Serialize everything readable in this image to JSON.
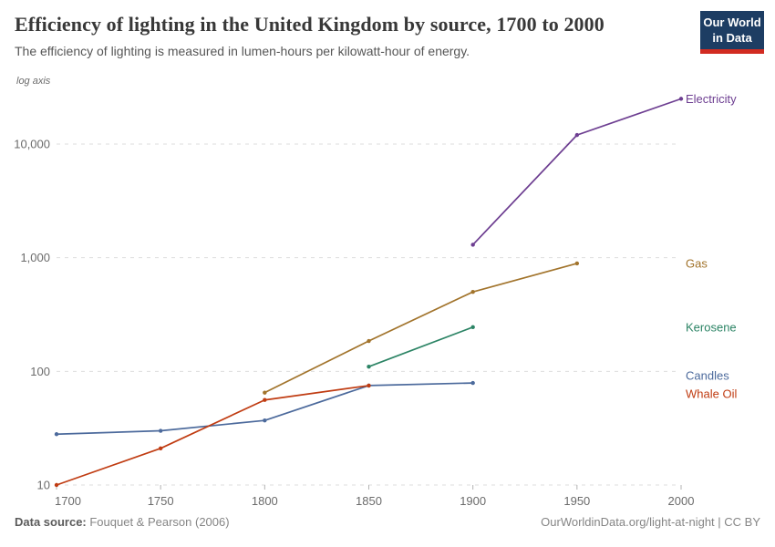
{
  "header": {
    "title": "Efficiency of lighting in the United Kingdom by source, 1700 to 2000",
    "subtitle": "The efficiency of lighting is measured in lumen-hours per kilowatt-hour of energy.",
    "logo": {
      "line1": "Our World",
      "line2": "in Data"
    }
  },
  "chart_data": {
    "type": "line",
    "title": "Efficiency of lighting in the United Kingdom by source, 1700 to 2000",
    "ylabel": "lumen-hours per kilowatt-hour of energy",
    "axis_note": "log axis",
    "y_scale": "log",
    "grid": "horizontal dashed",
    "legend_position": "right of line ends",
    "x_range": [
      1700,
      2000
    ],
    "y_range": [
      10,
      25000
    ],
    "x_ticks": [
      1700,
      1750,
      1800,
      1850,
      1900,
      1950,
      2000
    ],
    "y_ticks": [
      10,
      100,
      1000,
      10000
    ],
    "y_tick_labels": [
      "10",
      "100",
      "1,000",
      "10,000"
    ],
    "series": [
      {
        "name": "Electricity",
        "color": "#6d3e91",
        "x": [
          1900,
          1950,
          2000
        ],
        "values": [
          1300,
          12000,
          25000
        ],
        "label_dy": 0
      },
      {
        "name": "Gas",
        "color": "#a2742c",
        "x": [
          1800,
          1850,
          1900,
          1950
        ],
        "values": [
          65,
          185,
          500,
          890
        ],
        "label_dy": 0
      },
      {
        "name": "Kerosene",
        "color": "#2c8465",
        "x": [
          1850,
          1900
        ],
        "values": [
          110,
          245
        ],
        "label_dy": 0
      },
      {
        "name": "Candles",
        "color": "#4c6a9c",
        "x": [
          1700,
          1750,
          1800,
          1850,
          1900
        ],
        "values": [
          28,
          30,
          37,
          75,
          79
        ],
        "label_dy": -8
      },
      {
        "name": "Whale Oil",
        "color": "#c03c12",
        "x": [
          1700,
          1750,
          1800,
          1850
        ],
        "values": [
          10,
          21,
          56,
          75
        ],
        "label_dy": 9
      }
    ]
  },
  "footer": {
    "source_label": "Data source:",
    "source_value": " Fouquet & Pearson (2006)",
    "right_text": "OurWorldinData.org/light-at-night | CC BY"
  }
}
